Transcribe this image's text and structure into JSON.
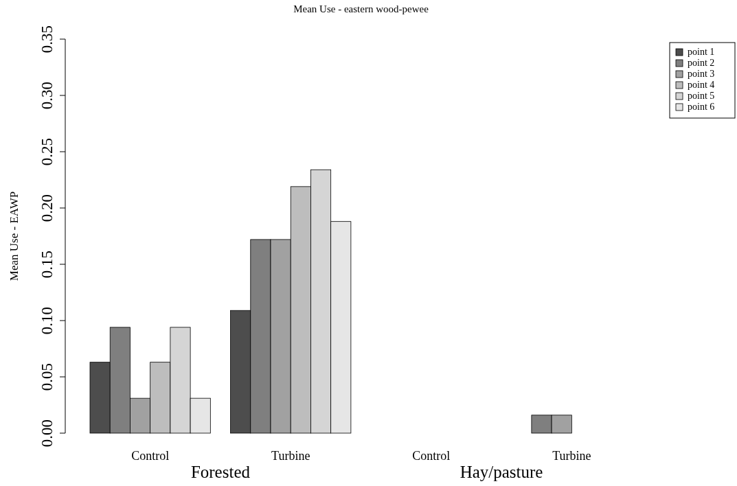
{
  "chart_data": {
    "type": "bar",
    "title": "Mean Use - eastern wood-pewee",
    "ylabel": "Mean Use - EAWP",
    "categories": [
      "Control",
      "Turbine",
      "Control",
      "Turbine"
    ],
    "annotations": [
      "Forested",
      "Hay/pasture"
    ],
    "series": [
      {
        "name": "point 1",
        "color": "#4d4d4d",
        "values": [
          0.063,
          0.109,
          0,
          0
        ]
      },
      {
        "name": "point 2",
        "color": "#7f7f7f",
        "values": [
          0.094,
          0.172,
          0,
          0.016
        ]
      },
      {
        "name": "point 3",
        "color": "#a1a1a1",
        "values": [
          0.031,
          0.172,
          0,
          0.016
        ]
      },
      {
        "name": "point 4",
        "color": "#bdbdbd",
        "values": [
          0.063,
          0.219,
          0,
          0
        ]
      },
      {
        "name": "point 5",
        "color": "#d5d5d5",
        "values": [
          0.094,
          0.234,
          0,
          0
        ]
      },
      {
        "name": "point 6",
        "color": "#e6e6e6",
        "values": [
          0.031,
          0.188,
          0,
          0
        ]
      }
    ],
    "ylim": [
      0,
      0.35
    ],
    "yticks": [
      {
        "value": 0,
        "label": "0.00"
      },
      {
        "value": 0.05,
        "label": "0.05"
      },
      {
        "value": 0.1,
        "label": "0.10"
      },
      {
        "value": 0.15,
        "label": "0.15"
      },
      {
        "value": 0.2,
        "label": "0.20"
      },
      {
        "value": 0.25,
        "label": "0.25"
      },
      {
        "value": 0.3,
        "label": "0.30"
      },
      {
        "value": 0.35,
        "label": "0.35"
      }
    ],
    "legend": "right",
    "grid": false
  }
}
